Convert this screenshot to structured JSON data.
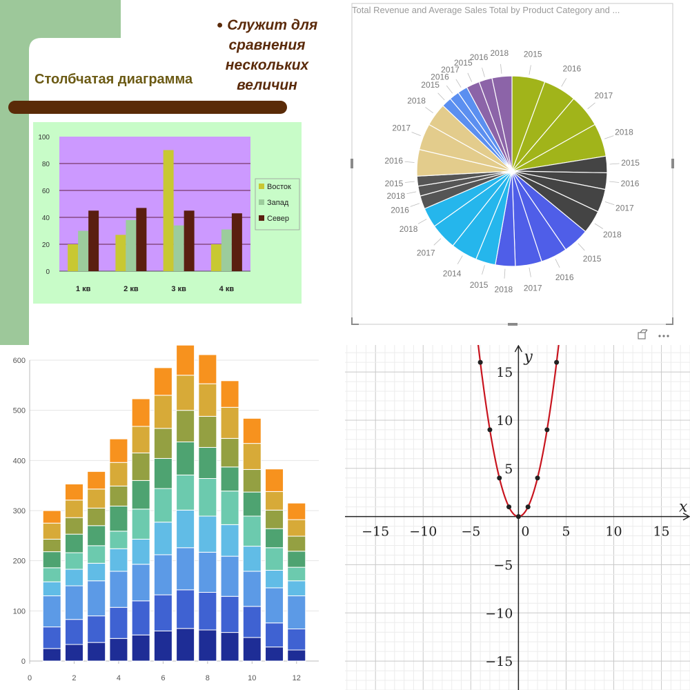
{
  "panel1": {
    "slide_title": "Столбчатая диаграмма",
    "bullet_lines": [
      "Служит для",
      "сравнения",
      "нескольких величин"
    ],
    "colors": {
      "sidebar": "#9dc89a",
      "bar_band": "#5a2b08",
      "chart_area": "#c8fcc8",
      "plot_bg": "#cc99ff"
    }
  },
  "panel2": {
    "title": "Total Revenue and Average Sales Total by Product Category and ..."
  },
  "chart_data": [
    {
      "type": "bar",
      "categories": [
        "1 кв",
        "2 кв",
        "3 кв",
        "4 кв"
      ],
      "series": [
        {
          "name": "Восток",
          "values": [
            20,
            27,
            90,
            20
          ],
          "color": "#c8c832"
        },
        {
          "name": "Запад",
          "values": [
            30,
            38,
            34,
            31
          ],
          "color": "#9ccc9c"
        },
        {
          "name": "Север",
          "values": [
            45,
            47,
            45,
            43
          ],
          "color": "#5a1e10"
        }
      ],
      "ylim": [
        0,
        100
      ],
      "yticks": [
        0,
        20,
        40,
        60,
        80,
        100
      ],
      "legend_position": "right",
      "grid": true
    },
    {
      "type": "pie",
      "slices": [
        {
          "label": "2015",
          "value": 5,
          "color": "#a1b41a"
        },
        {
          "label": "2016",
          "value": 5,
          "color": "#a1b41a"
        },
        {
          "label": "2017",
          "value": 5,
          "color": "#a1b41a"
        },
        {
          "label": "2018",
          "value": 5,
          "color": "#a1b41a"
        },
        {
          "label": "2015",
          "value": 2.5,
          "color": "#444444"
        },
        {
          "label": "2016",
          "value": 2.5,
          "color": "#444444"
        },
        {
          "label": "2017",
          "value": 3.5,
          "color": "#444444"
        },
        {
          "label": "2018",
          "value": 3.5,
          "color": "#444444"
        },
        {
          "label": "2015",
          "value": 4,
          "color": "#4f5ee8"
        },
        {
          "label": "2016",
          "value": 4,
          "color": "#4f5ee8"
        },
        {
          "label": "2017",
          "value": 4,
          "color": "#4f5ee8"
        },
        {
          "label": "2018",
          "value": 3,
          "color": "#4f5ee8"
        },
        {
          "label": "2015",
          "value": 3,
          "color": "#25b6ec"
        },
        {
          "label": "2014",
          "value": 4,
          "color": "#25b6ec"
        },
        {
          "label": "2017",
          "value": 4,
          "color": "#25b6ec"
        },
        {
          "label": "2018",
          "value": 3,
          "color": "#25b6ec"
        },
        {
          "label": "2016",
          "value": 2,
          "color": "#555555"
        },
        {
          "label": "2018",
          "value": 1.5,
          "color": "#555555"
        },
        {
          "label": "2015",
          "value": 1.5,
          "color": "#555555"
        },
        {
          "label": "2016",
          "value": 4,
          "color": "#e3cc8c"
        },
        {
          "label": "2017",
          "value": 4,
          "color": "#e3cc8c"
        },
        {
          "label": "2018",
          "value": 3.5,
          "color": "#e3cc8c"
        },
        {
          "label": "2015",
          "value": 1.5,
          "color": "#5b8ff0"
        },
        {
          "label": "2016",
          "value": 1.5,
          "color": "#5b8ff0"
        },
        {
          "label": "2017",
          "value": 1.5,
          "color": "#5b8ff0"
        },
        {
          "label": "2015",
          "value": 2,
          "color": "#8c64a8"
        },
        {
          "label": "2016",
          "value": 2,
          "color": "#8c64a8"
        },
        {
          "label": "2018",
          "value": 3,
          "color": "#8c64a8"
        }
      ]
    },
    {
      "type": "bar",
      "stacked": true,
      "categories": [
        1,
        2,
        3,
        4,
        5,
        6,
        7,
        8,
        9,
        10,
        11,
        12
      ],
      "series": [
        {
          "color": "#1e2d96",
          "values": [
            25,
            33,
            37,
            45,
            52,
            60,
            65,
            62,
            57,
            47,
            28,
            22
          ]
        },
        {
          "color": "#3f62d2",
          "values": [
            43,
            50,
            53,
            62,
            68,
            72,
            77,
            75,
            72,
            62,
            48,
            42
          ]
        },
        {
          "color": "#5c9ae6",
          "values": [
            62,
            67,
            70,
            72,
            73,
            80,
            84,
            80,
            80,
            70,
            70,
            66
          ]
        },
        {
          "color": "#61bce6",
          "values": [
            28,
            33,
            35,
            45,
            50,
            65,
            75,
            72,
            63,
            50,
            35,
            30
          ]
        },
        {
          "color": "#6ccaae",
          "values": [
            28,
            33,
            35,
            35,
            60,
            67,
            70,
            75,
            67,
            60,
            45,
            27
          ]
        },
        {
          "color": "#4ea371",
          "values": [
            32,
            37,
            40,
            50,
            57,
            60,
            66,
            62,
            48,
            48,
            38,
            32
          ]
        },
        {
          "color": "#94a042",
          "values": [
            25,
            33,
            35,
            40,
            55,
            60,
            63,
            62,
            57,
            45,
            37,
            30
          ]
        },
        {
          "color": "#d7aa38",
          "values": [
            32,
            35,
            38,
            47,
            53,
            66,
            70,
            65,
            62,
            52,
            37,
            33
          ]
        },
        {
          "color": "#f7921e",
          "values": [
            25,
            32,
            35,
            47,
            55,
            55,
            60,
            58,
            53,
            50,
            45,
            33
          ]
        }
      ],
      "ylim": [
        0,
        600
      ],
      "yticks": [
        0,
        100,
        200,
        300,
        400,
        500,
        600
      ],
      "xticks": [
        0,
        2,
        4,
        6,
        8,
        10,
        12
      ],
      "grid": true
    },
    {
      "type": "line",
      "function": "y = x^2",
      "xlabel": "x",
      "ylabel": "y",
      "xlim": [
        -18.2,
        18
      ],
      "ylim": [
        -18,
        17.8
      ],
      "xticks": [
        -15,
        -10,
        -5,
        0,
        5,
        10,
        15
      ],
      "yticks": [
        -15,
        -10,
        -5,
        5,
        10,
        15
      ],
      "tick_labels_x": [
        "−15",
        "−10",
        "−5",
        "0",
        "5",
        "10",
        "15"
      ],
      "tick_labels_y": [
        "−15",
        "−10",
        "−5",
        "5",
        "10",
        "15"
      ],
      "points": [
        [
          -4,
          16
        ],
        [
          -3,
          9
        ],
        [
          -2,
          4
        ],
        [
          -1,
          1
        ],
        [
          0,
          0
        ],
        [
          1,
          1
        ],
        [
          2,
          4
        ],
        [
          3,
          9
        ],
        [
          4,
          16
        ]
      ],
      "line_color": "#c8141e",
      "grid": true
    }
  ]
}
